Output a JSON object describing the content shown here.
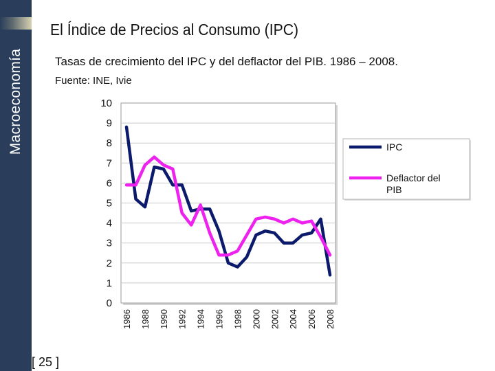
{
  "sidebar": {
    "title": "Macroeconomía"
  },
  "header": {
    "title": "El Índice de Precios al Consumo (IPC)"
  },
  "subtitle": "Tasas de crecimiento del IPC y del deflactor del PIB. 1986 – 2008.",
  "source": "Fuente: INE, Ivie",
  "footer": {
    "page": "[ 25 ]"
  },
  "colors": {
    "sidebar": "#2a3e5c",
    "ipc": "#0b1a6b",
    "deflactor": "#ee22ee",
    "grid": "#c8c8c8"
  },
  "chart_data": {
    "type": "line",
    "title": "",
    "xlabel": "",
    "ylabel": "",
    "ylim": [
      0,
      10
    ],
    "yticks": [
      "0",
      "1",
      "2",
      "3",
      "4",
      "5",
      "6",
      "7",
      "8",
      "9",
      "10"
    ],
    "x": [
      1986,
      1987,
      1988,
      1989,
      1990,
      1991,
      1992,
      1993,
      1994,
      1995,
      1996,
      1997,
      1998,
      1999,
      2000,
      2001,
      2002,
      2003,
      2004,
      2005,
      2006,
      2007,
      2008
    ],
    "xtick_labels": [
      "1986",
      "1988",
      "1990",
      "1992",
      "1994",
      "1996",
      "1998",
      "2000",
      "2002",
      "2004",
      "2006",
      "2008"
    ],
    "series": [
      {
        "name": "IPC",
        "values": [
          8.8,
          5.2,
          4.8,
          6.8,
          6.7,
          5.9,
          5.9,
          4.6,
          4.7,
          4.7,
          3.6,
          2.0,
          1.8,
          2.3,
          3.4,
          3.6,
          3.5,
          3.0,
          3.0,
          3.4,
          3.5,
          4.2,
          1.4
        ]
      },
      {
        "name": "Deflactor del PIB",
        "values": [
          5.9,
          5.9,
          6.9,
          7.3,
          6.9,
          6.7,
          4.5,
          3.9,
          4.9,
          3.5,
          2.4,
          2.4,
          2.6,
          3.4,
          4.2,
          4.3,
          4.2,
          4.0,
          4.2,
          4.0,
          4.1,
          3.3,
          2.4
        ]
      }
    ],
    "legend": {
      "position": "right",
      "entries": [
        {
          "line1": "IPC"
        },
        {
          "line1": "Deflactor del",
          "line2": "PIB"
        }
      ]
    },
    "grid": true
  }
}
